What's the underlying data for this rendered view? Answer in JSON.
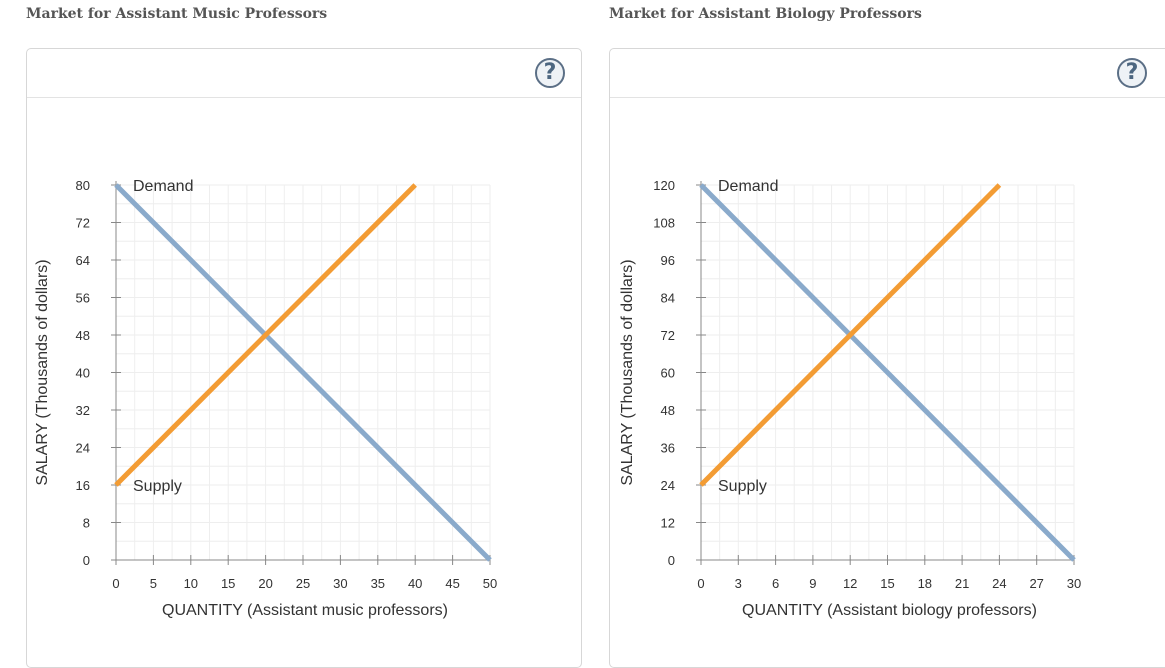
{
  "panels": [
    {
      "title": "Market for Assistant Music Professors",
      "help_label": "?"
    },
    {
      "title": "Market for Assistant Biology Professors",
      "help_label": "?"
    }
  ],
  "colors": {
    "demand": "#8aaacb",
    "supply": "#f39c34",
    "grid": "#eeeeee",
    "axis": "#888888"
  },
  "chart_data": [
    {
      "type": "line",
      "title": "Market for Assistant Music Professors",
      "xlabel": "QUANTITY (Assistant music professors)",
      "ylabel": "SALARY (Thousands of dollars)",
      "xlim": [
        0,
        50
      ],
      "ylim": [
        0,
        80
      ],
      "xticks": [
        0,
        5,
        10,
        15,
        20,
        25,
        30,
        35,
        40,
        45,
        50
      ],
      "yticks": [
        0,
        8,
        16,
        24,
        32,
        40,
        48,
        56,
        64,
        72,
        80
      ],
      "grid": true,
      "series": [
        {
          "name": "Demand",
          "color": "#8aaacb",
          "x": [
            0,
            50
          ],
          "y": [
            80,
            0
          ]
        },
        {
          "name": "Supply",
          "color": "#f39c34",
          "x": [
            0,
            40
          ],
          "y": [
            16,
            80
          ]
        }
      ]
    },
    {
      "type": "line",
      "title": "Market for Assistant Biology Professors",
      "xlabel": "QUANTITY (Assistant biology professors)",
      "ylabel": "SALARY (Thousands of dollars)",
      "xlim": [
        0,
        30
      ],
      "ylim": [
        0,
        120
      ],
      "xticks": [
        0,
        3,
        6,
        9,
        12,
        15,
        18,
        21,
        24,
        27,
        30
      ],
      "yticks": [
        0,
        12,
        24,
        36,
        48,
        60,
        72,
        84,
        96,
        108,
        120
      ],
      "grid": true,
      "series": [
        {
          "name": "Demand",
          "color": "#8aaacb",
          "x": [
            0,
            30
          ],
          "y": [
            120,
            0
          ]
        },
        {
          "name": "Supply",
          "color": "#f39c34",
          "x": [
            0,
            24
          ],
          "y": [
            24,
            120
          ]
        }
      ]
    }
  ]
}
